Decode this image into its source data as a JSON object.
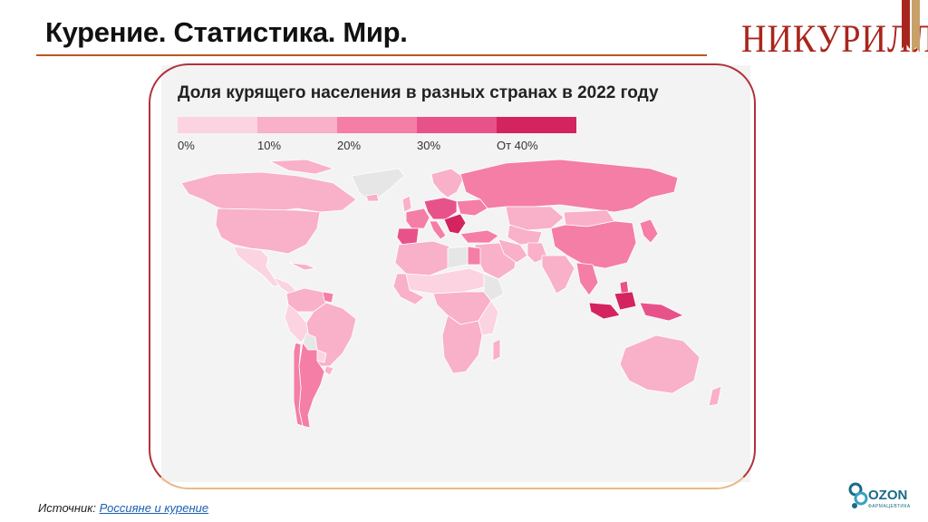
{
  "slide": {
    "title": "Курение. Статистика. Мир.",
    "logo_text": "НИКУРИЛЛЫ",
    "source_prefix": "Источник: ",
    "source_link": "Россияне и курение"
  },
  "map": {
    "title": "Доля курящего населения в разных странах в 2022 году",
    "legend": [
      {
        "label": "0%",
        "color": "#fcd3e1"
      },
      {
        "label": "10%",
        "color": "#f9b0c9"
      },
      {
        "label": "20%",
        "color": "#f47ea6"
      },
      {
        "label": "30%",
        "color": "#e8528a"
      },
      {
        "label": "От 40%",
        "color": "#d4245f"
      }
    ],
    "no_data_color": "#e6e6e6"
  },
  "brand2": {
    "name": "OZON",
    "sub": "ФАРМАЦЕВТИКА"
  }
}
